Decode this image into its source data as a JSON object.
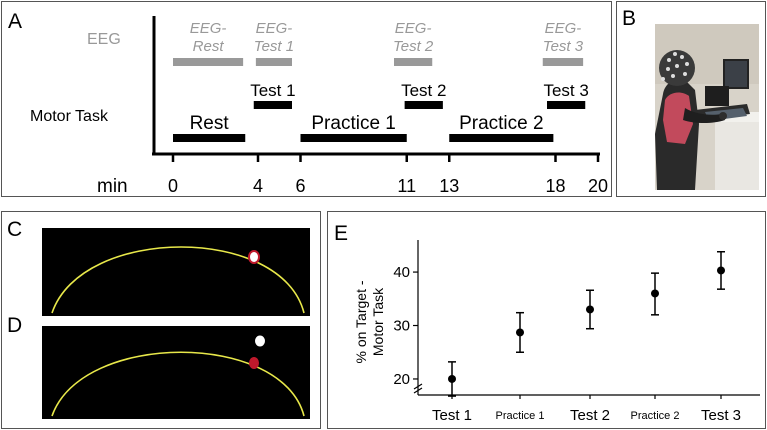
{
  "panels": {
    "A": {
      "label": "A",
      "rows": {
        "eeg": "EEG",
        "motor": "Motor Task"
      },
      "axis_label": "min",
      "ticks": [
        "0",
        "4",
        "6",
        "11",
        "13",
        "18",
        "20"
      ],
      "eeg_blocks": [
        {
          "line1": "EEG-",
          "line2": "Rest"
        },
        {
          "line1": "EEG-",
          "line2": "Test 1"
        },
        {
          "line1": "EEG-",
          "line2": "Test 2"
        },
        {
          "line1": "EEG-",
          "line2": "Test 3"
        }
      ],
      "motor_blocks": [
        "Rest",
        "Test 1",
        "Practice 1",
        "Test 2",
        "Practice 2",
        "Test 3"
      ],
      "colors": {
        "eeg": "#999999",
        "motor": "#000000"
      }
    },
    "B": {
      "label": "B"
    },
    "C": {
      "label": "C"
    },
    "D": {
      "label": "D"
    },
    "E": {
      "label": "E",
      "ylabel_line1": "% on Target -",
      "ylabel_line2": "Motor Task"
    }
  },
  "chart_data": {
    "type": "scatter",
    "title": "",
    "xlabel": "",
    "ylabel": "% on Target - Motor Task",
    "categories": [
      "Test 1",
      "Practice 1",
      "Test 2",
      "Practice 2",
      "Test 3"
    ],
    "values": [
      20,
      28.7,
      33,
      36,
      40.3
    ],
    "error_low": [
      16.8,
      25,
      29.4,
      32,
      36.8
    ],
    "error_high": [
      23.2,
      32.4,
      36.6,
      39.8,
      43.8
    ],
    "yticks": [
      "20",
      "30",
      "40"
    ],
    "ylim": [
      17,
      46
    ],
    "grid": false,
    "axis_break": true
  }
}
